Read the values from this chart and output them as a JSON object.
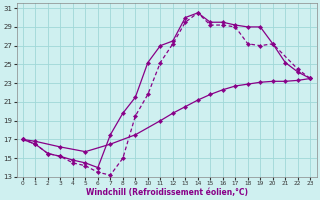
{
  "xlabel": "Windchill (Refroidissement éolien,°C)",
  "xlim": [
    -0.5,
    23.5
  ],
  "ylim": [
    13,
    31.5
  ],
  "yticks": [
    13,
    15,
    17,
    19,
    21,
    23,
    25,
    27,
    29,
    31
  ],
  "xticks": [
    0,
    1,
    2,
    3,
    4,
    5,
    6,
    7,
    8,
    9,
    10,
    11,
    12,
    13,
    14,
    15,
    16,
    17,
    18,
    19,
    20,
    21,
    22,
    23
  ],
  "bg_color": "#cff0f0",
  "grid_color": "#a0d8d8",
  "line_color": "#880088",
  "line1_x": [
    0,
    1,
    2,
    3,
    4,
    5,
    6,
    7,
    8,
    9,
    10,
    11,
    12,
    13,
    14,
    15,
    16,
    17,
    18,
    19,
    20,
    21,
    22,
    23
  ],
  "line1_y": [
    17,
    16.5,
    15.5,
    15.2,
    14.8,
    14.5,
    14.0,
    17.5,
    19.8,
    21.5,
    25.2,
    27.0,
    27.5,
    30.0,
    30.5,
    29.5,
    29.5,
    29.2,
    29.0,
    29.0,
    27.2,
    25.2,
    24.2,
    23.5
  ],
  "line2_x": [
    0,
    1,
    3,
    5,
    7,
    9,
    11,
    12,
    13,
    14,
    15,
    16,
    17,
    18,
    19,
    20,
    21,
    22,
    23
  ],
  "line2_y": [
    17,
    16.8,
    16.2,
    15.7,
    16.5,
    17.5,
    19.0,
    19.8,
    20.5,
    21.2,
    21.8,
    22.3,
    22.7,
    22.9,
    23.1,
    23.2,
    23.2,
    23.3,
    23.5
  ],
  "line3_x": [
    0,
    1,
    2,
    3,
    4,
    5,
    6,
    7,
    8,
    9,
    10,
    11,
    12,
    13,
    14,
    15,
    16,
    17,
    18,
    19,
    20,
    22,
    23
  ],
  "line3_y": [
    17,
    16.5,
    15.5,
    15.2,
    14.5,
    14.2,
    13.5,
    13.2,
    15.0,
    19.5,
    21.8,
    25.2,
    27.2,
    29.5,
    30.5,
    29.2,
    29.2,
    29.0,
    27.2,
    27.0,
    27.2,
    24.5,
    23.5
  ]
}
